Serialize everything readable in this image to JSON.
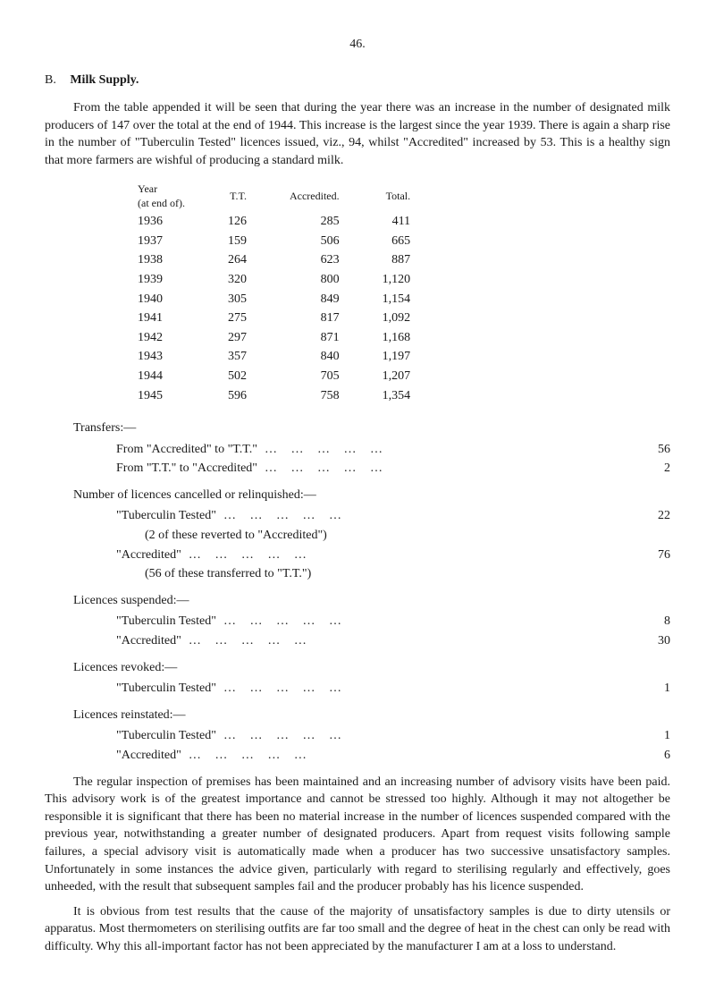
{
  "pageNumber": "46.",
  "section": {
    "letter": "B.",
    "title": "Milk Supply."
  },
  "intro": "From the table appended it will be seen that during the year there was an increase in the number of designated milk producers of 147 over the total at the end of 1944. This increase is the largest since the year 1939. There is again a sharp rise in the number of \"Tuberculin Tested\" licences issued, viz., 94, whilst \"Accredited\" increased by 53. This is a healthy sign that more farmers are wishful of producing a standard milk.",
  "tableHeader": {
    "yearLabel": "Year",
    "atEnd": "(at end of).",
    "col2": "T.T.",
    "col3": "Accredited.",
    "col4": "Total."
  },
  "yearRows": [
    {
      "year": "1936",
      "tt": "126",
      "acc": "285",
      "total": "411"
    },
    {
      "year": "1937",
      "tt": "159",
      "acc": "506",
      "total": "665"
    },
    {
      "year": "1938",
      "tt": "264",
      "acc": "623",
      "total": "887"
    },
    {
      "year": "1939",
      "tt": "320",
      "acc": "800",
      "total": "1,120"
    },
    {
      "year": "1940",
      "tt": "305",
      "acc": "849",
      "total": "1,154"
    },
    {
      "year": "1941",
      "tt": "275",
      "acc": "817",
      "total": "1,092"
    },
    {
      "year": "1942",
      "tt": "297",
      "acc": "871",
      "total": "1,168"
    },
    {
      "year": "1943",
      "tt": "357",
      "acc": "840",
      "total": "1,197"
    },
    {
      "year": "1944",
      "tt": "502",
      "acc": "705",
      "total": "1,207"
    },
    {
      "year": "1945",
      "tt": "596",
      "acc": "758",
      "total": "1,354"
    }
  ],
  "transfers": {
    "heading": "Transfers:—",
    "items": [
      {
        "label": "From \"Accredited\" to \"T.T.\"",
        "value": "56"
      },
      {
        "label": "From \"T.T.\" to \"Accredited\"",
        "value": "2"
      }
    ]
  },
  "cancelled": {
    "heading": "Number of licences cancelled or relinquished:—",
    "items": [
      {
        "label": "\"Tuberculin Tested\"",
        "value": "22",
        "note": "(2 of these reverted to \"Accredited\")"
      },
      {
        "label": "\"Accredited\"",
        "value": "76",
        "note": "(56 of these transferred to \"T.T.\")"
      }
    ]
  },
  "suspended": {
    "heading": "Licences suspended:—",
    "items": [
      {
        "label": "\"Tuberculin Tested\"",
        "value": "8"
      },
      {
        "label": "\"Accredited\"",
        "value": "30"
      }
    ]
  },
  "revoked": {
    "heading": "Licences revoked:—",
    "items": [
      {
        "label": "\"Tuberculin Tested\"",
        "value": "1"
      }
    ]
  },
  "reinstated": {
    "heading": "Licences reinstated:—",
    "items": [
      {
        "label": "\"Tuberculin Tested\"",
        "value": "1"
      },
      {
        "label": "\"Accredited\"",
        "value": "6"
      }
    ]
  },
  "para2": "The regular inspection of premises has been maintained and an increasing number of advisory visits have been paid. This advisory work is of the greatest importance and cannot be stressed too highly. Although it may not altogether be responsible it is significant that there has been no material increase in the number of licences suspended compared with the previous year, notwithstanding a greater number of designated producers. Apart from request visits following sample failures, a special advisory visit is automatically made when a producer has two successive unsatisfactory samples. Unfortunately in some instances the advice given, particularly with regard to sterilising regularly and effectively, goes unheeded, with the result that subsequent samples fail and the producer probably has his licence suspended.",
  "para3": "It is obvious from test results that the cause of the majority of unsatisfactory samples is due to dirty utensils or apparatus. Most thermometers on sterilising outfits are far too small and the degree of heat in the chest can only be read with difficulty. Why this all-important factor has not been appreciated by the manufacturer I am at a loss to understand."
}
